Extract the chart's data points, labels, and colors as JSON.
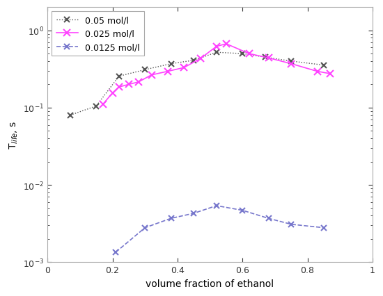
{
  "series_05": {
    "label": "0.05 mol/l",
    "x": [
      0.07,
      0.15,
      0.22,
      0.3,
      0.38,
      0.45,
      0.52,
      0.6,
      0.67,
      0.75,
      0.85
    ],
    "y": [
      0.08,
      0.105,
      0.255,
      0.31,
      0.37,
      0.41,
      0.52,
      0.5,
      0.45,
      0.4,
      0.355
    ],
    "color": "#555555",
    "linestyle": "dotted",
    "marker": "x",
    "linewidth": 1.0,
    "markersize": 6,
    "markeredgewidth": 1.5
  },
  "series_025": {
    "label": "0.025 mol/l",
    "x": [
      0.17,
      0.2,
      0.22,
      0.25,
      0.28,
      0.32,
      0.37,
      0.42,
      0.47,
      0.52,
      0.55,
      0.62,
      0.68,
      0.75,
      0.83,
      0.87
    ],
    "y": [
      0.11,
      0.155,
      0.185,
      0.2,
      0.215,
      0.265,
      0.295,
      0.33,
      0.43,
      0.62,
      0.67,
      0.5,
      0.44,
      0.37,
      0.295,
      0.275
    ],
    "color": "#ff44ff",
    "linestyle": "solid",
    "marker": "x",
    "linewidth": 1.2,
    "markersize": 7,
    "markeredgewidth": 1.5
  },
  "series_0125": {
    "label": "0.0125 mol/l",
    "x": [
      0.21,
      0.3,
      0.38,
      0.45,
      0.52,
      0.6,
      0.68,
      0.75,
      0.85
    ],
    "y": [
      0.00135,
      0.0028,
      0.0037,
      0.0043,
      0.0054,
      0.0047,
      0.0037,
      0.0031,
      0.0028
    ],
    "color": "#7777cc",
    "linestyle": "dashed",
    "marker": "x",
    "linewidth": 1.2,
    "markersize": 6,
    "markeredgewidth": 1.5
  },
  "xlabel": "volume fraction of ethanol",
  "ylabel": "T$_{life}$, s",
  "xlim": [
    0,
    1
  ],
  "ylim": [
    0.001,
    2.0
  ],
  "figsize": [
    5.5,
    4.27
  ],
  "dpi": 100,
  "bg_color": "#ffffff",
  "axes_bg_color": "#ffffff"
}
